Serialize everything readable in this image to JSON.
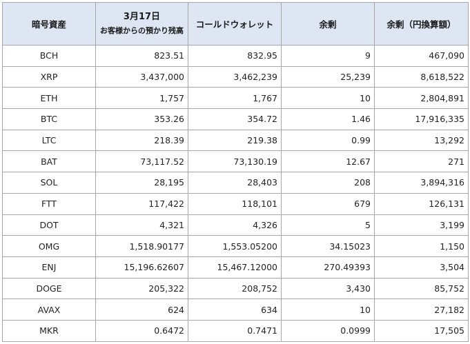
{
  "headers": {
    "symbol": "暗号資産",
    "date_line1": "3月17日",
    "date_line2": "お客様からの預かり残高",
    "cold_wallet": "コールドウォレット",
    "surplus": "余剰",
    "surplus_jpy": "余剰（円換算額）"
  },
  "rows": [
    {
      "symbol": "BCH",
      "customer": "823.51",
      "cold": "832.95",
      "surplus": "9",
      "surplus_jpy": "467,090"
    },
    {
      "symbol": "XRP",
      "customer": "3,437,000",
      "cold": "3,462,239",
      "surplus": "25,239",
      "surplus_jpy": "8,618,522"
    },
    {
      "symbol": "ETH",
      "customer": "1,757",
      "cold": "1,767",
      "surplus": "10",
      "surplus_jpy": "2,804,891"
    },
    {
      "symbol": "BTC",
      "customer": "353.26",
      "cold": "354.72",
      "surplus": "1.46",
      "surplus_jpy": "17,916,335"
    },
    {
      "symbol": "LTC",
      "customer": "218.39",
      "cold": "219.38",
      "surplus": "0.99",
      "surplus_jpy": "13,292"
    },
    {
      "symbol": "BAT",
      "customer": "73,117.52",
      "cold": "73,130.19",
      "surplus": "12.67",
      "surplus_jpy": "271"
    },
    {
      "symbol": "SOL",
      "customer": "28,195",
      "cold": "28,403",
      "surplus": "208",
      "surplus_jpy": "3,894,316"
    },
    {
      "symbol": "FTT",
      "customer": "117,422",
      "cold": "118,101",
      "surplus": "679",
      "surplus_jpy": "126,131"
    },
    {
      "symbol": "DOT",
      "customer": "4,321",
      "cold": "4,326",
      "surplus": "5",
      "surplus_jpy": "3,199"
    },
    {
      "symbol": "OMG",
      "customer": "1,518.90177",
      "cold": "1,553.05200",
      "surplus": "34.15023",
      "surplus_jpy": "1,150"
    },
    {
      "symbol": "ENJ",
      "customer": "15,196.62607",
      "cold": "15,467.12000",
      "surplus": "270.49393",
      "surplus_jpy": "3,504"
    },
    {
      "symbol": "DOGE",
      "customer": "205,322",
      "cold": "208,752",
      "surplus": "3,430",
      "surplus_jpy": "85,752"
    },
    {
      "symbol": "AVAX",
      "customer": "624",
      "cold": "634",
      "surplus": "10",
      "surplus_jpy": "27,182"
    },
    {
      "symbol": "MKR",
      "customer": "0.6472",
      "cold": "0.7471",
      "surplus": "0.0999",
      "surplus_jpy": "17,505"
    }
  ],
  "colors": {
    "header_bg": "#dde6f2",
    "border": "#a6a6a6",
    "text": "#222222"
  }
}
